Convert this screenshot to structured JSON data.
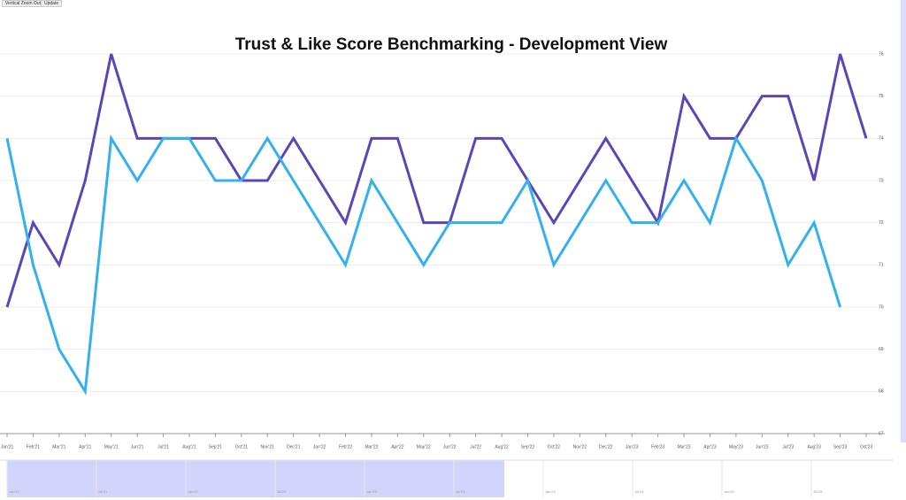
{
  "toolbar": {
    "buttons": [
      "Vertical Zoom Out",
      "Update"
    ]
  },
  "chart_data": {
    "type": "line",
    "title": "Trust & Like Score Benchmarking - Development View",
    "categories": [
      "Jan'21",
      "Feb'21",
      "Mar'21",
      "Apr'21",
      "May'21",
      "Jun'21",
      "Jul'21",
      "Aug'21",
      "Sep'21",
      "Oct'21",
      "Nov'21",
      "Dec'21",
      "Jan'22",
      "Feb'22",
      "Mar'22",
      "Apr'22",
      "May'22",
      "Jun'22",
      "Jul'22",
      "Aug'22",
      "Sep'22",
      "Oct'22",
      "Nov'22",
      "Dec'22",
      "Jan'23",
      "Feb'23",
      "Mar'23",
      "Apr'23",
      "May'23",
      "Jun'23",
      "Jul'23",
      "Aug'23",
      "Sep'23",
      "Oct'23"
    ],
    "series": [
      {
        "color": "#5b45b8",
        "values": [
          70,
          72,
          71,
          73,
          76,
          74,
          74,
          74,
          74,
          73,
          73,
          74,
          73,
          72,
          74,
          74,
          72,
          72,
          74,
          74,
          73,
          72,
          73,
          74,
          73,
          72,
          75,
          74,
          74,
          75,
          75,
          73,
          76,
          74
        ]
      },
      {
        "color": "#33b0f0",
        "values": [
          74,
          71,
          69,
          68,
          74,
          73,
          74,
          74,
          73,
          73,
          74,
          73,
          72,
          71,
          73,
          72,
          71,
          72,
          72,
          72,
          73,
          71,
          72,
          73,
          72,
          72,
          73,
          72,
          74,
          73,
          71,
          72,
          70,
          null
        ]
      }
    ],
    "ylim": [
      67,
      76
    ],
    "yticks": [
      67,
      68,
      69,
      70,
      71,
      72,
      73,
      74,
      75,
      76
    ],
    "grid": true
  },
  "navigator": {
    "labels": [
      "Jan'21",
      "Jul'21",
      "Jan'22",
      "Jul'22",
      "Jan'23",
      "Jul'23",
      "Jan'24",
      "Jul'24",
      "Jan'25",
      "Jul'25"
    ]
  }
}
